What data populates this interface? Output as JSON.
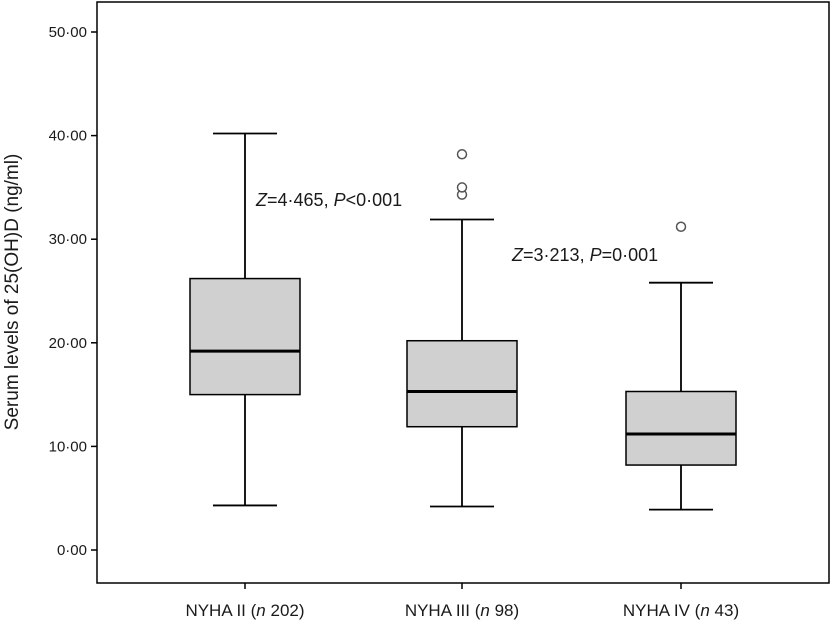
{
  "chart_data": {
    "type": "box",
    "ylabel": "Serum levels of 25(OH)D (ng/ml)",
    "ylim": [
      0,
      50
    ],
    "y_ticks": [
      "0·00",
      "10·00",
      "20·00",
      "30·00",
      "40·00",
      "50·00"
    ],
    "y_tick_values": [
      0,
      10,
      20,
      30,
      40,
      50
    ],
    "grid": false,
    "colors": {
      "box_fill": "#d0d0d0",
      "stroke": "#000000"
    },
    "categories": [
      {
        "name": "NYHA II",
        "n_label": "n",
        "n_value": "202"
      },
      {
        "name": "NYHA III",
        "n_label": "n",
        "n_value": "98"
      },
      {
        "name": "NYHA IV",
        "n_label": "n",
        "n_value": "43"
      }
    ],
    "boxes": [
      {
        "whisker_low": 4.3,
        "q1": 15.0,
        "median": 19.2,
        "q3": 26.2,
        "whisker_high": 40.2,
        "outliers": []
      },
      {
        "whisker_low": 4.2,
        "q1": 11.9,
        "median": 15.3,
        "q3": 20.2,
        "whisker_high": 31.9,
        "outliers": [
          34.3,
          35.0,
          38.2
        ]
      },
      {
        "whisker_low": 3.9,
        "q1": 8.2,
        "median": 11.2,
        "q3": 15.3,
        "whisker_high": 25.8,
        "outliers": [
          31.2
        ]
      }
    ],
    "annotations": [
      {
        "z_label": "Z",
        "z_value": "4·465",
        "p_label": "P",
        "p_value": "<0·001"
      },
      {
        "z_label": "Z",
        "z_value": "3·213",
        "p_label": "P",
        "p_value": "0·001"
      }
    ]
  }
}
